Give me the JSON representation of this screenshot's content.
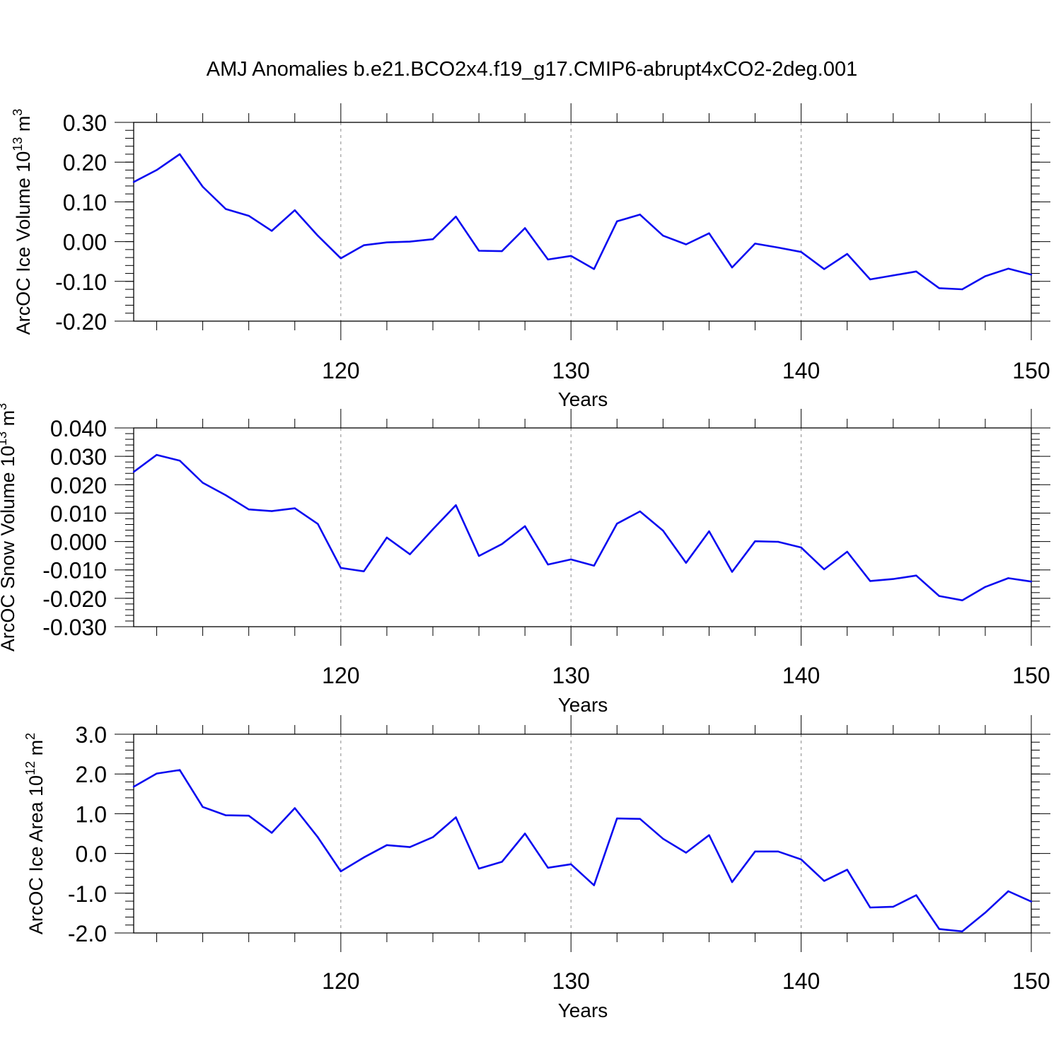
{
  "title": "AMJ Anomalies b.e21.BCO2x4.f19_g17.CMIP6-abrupt4xCO2-2deg.001",
  "line_color": "#0a0af0",
  "chart_data": [
    {
      "type": "line",
      "name": "ice-volume",
      "ylabel": "ArcOC Ice Volume 10",
      "ylabel_sup": "13",
      "ylabel_unit": " m",
      "ylabel_unit_sup": "3",
      "xlabel": "Years",
      "xlim": [
        111,
        150
      ],
      "ylim": [
        -0.2,
        0.3
      ],
      "xticks": [
        120,
        130,
        140,
        150
      ],
      "xtick_labels": [
        "120",
        "130",
        "140",
        "150"
      ],
      "yticks": [
        -0.2,
        -0.1,
        0.0,
        0.1,
        0.2,
        0.3
      ],
      "ytick_labels": [
        "-0.20",
        "-0.10",
        "0.00",
        "0.10",
        "0.20",
        "0.30"
      ],
      "y_minor_step": 0.02,
      "grid": "vertical dashed at major x ticks",
      "x": [
        111,
        112,
        113,
        114,
        115,
        116,
        117,
        118,
        119,
        120,
        121,
        122,
        123,
        124,
        125,
        126,
        127,
        128,
        129,
        130,
        131,
        132,
        133,
        134,
        135,
        136,
        137,
        138,
        139,
        140,
        141,
        142,
        143,
        144,
        145,
        146,
        147,
        148,
        149,
        150
      ],
      "values": [
        0.15,
        0.18,
        0.22,
        0.138,
        0.082,
        0.065,
        0.027,
        0.079,
        0.015,
        -0.042,
        -0.009,
        -0.002,
        0.0,
        0.006,
        0.063,
        -0.023,
        -0.024,
        0.034,
        -0.045,
        -0.036,
        -0.069,
        0.051,
        0.068,
        0.015,
        -0.007,
        0.021,
        -0.065,
        -0.005,
        -0.015,
        -0.026,
        -0.069,
        -0.031,
        -0.095,
        -0.085,
        -0.075,
        -0.117,
        -0.12,
        -0.087,
        -0.068,
        -0.083
      ]
    },
    {
      "type": "line",
      "name": "snow-volume",
      "ylabel": "ArcOC Snow Volume 10",
      "ylabel_sup": "13",
      "ylabel_unit": " m",
      "ylabel_unit_sup": "3",
      "xlabel": "Years",
      "xlim": [
        111,
        150
      ],
      "ylim": [
        -0.03,
        0.04
      ],
      "xticks": [
        120,
        130,
        140,
        150
      ],
      "xtick_labels": [
        "120",
        "130",
        "140",
        "150"
      ],
      "yticks": [
        -0.03,
        -0.02,
        -0.01,
        0.0,
        0.01,
        0.02,
        0.03,
        0.04
      ],
      "ytick_labels": [
        "-0.030",
        "-0.020",
        "-0.010",
        "0.000",
        "0.010",
        "0.020",
        "0.030",
        "0.040"
      ],
      "y_minor_step": 0.002,
      "grid": "vertical dashed at major x ticks",
      "x": [
        111,
        112,
        113,
        114,
        115,
        116,
        117,
        118,
        119,
        120,
        121,
        122,
        123,
        124,
        125,
        126,
        127,
        128,
        129,
        130,
        131,
        132,
        133,
        134,
        135,
        136,
        137,
        138,
        139,
        140,
        141,
        142,
        143,
        144,
        145,
        146,
        147,
        148,
        149,
        150
      ],
      "values": [
        0.0245,
        0.0305,
        0.0285,
        0.0207,
        0.0163,
        0.0113,
        0.0107,
        0.0117,
        0.0062,
        -0.0093,
        -0.0105,
        0.0014,
        -0.0045,
        0.0043,
        0.0128,
        -0.0051,
        -0.0009,
        0.0054,
        -0.0081,
        -0.0063,
        -0.0085,
        0.0063,
        0.0106,
        0.0038,
        -0.0075,
        0.0036,
        -0.0107,
        0.0001,
        -0.0001,
        -0.0021,
        -0.0098,
        -0.0036,
        -0.0139,
        -0.0132,
        -0.012,
        -0.0192,
        -0.0207,
        -0.016,
        -0.0129,
        -0.0141
      ]
    },
    {
      "type": "line",
      "name": "ice-area",
      "ylabel": "ArcOC Ice Area 10",
      "ylabel_sup": "12",
      "ylabel_unit": " m",
      "ylabel_unit_sup": "2",
      "xlabel": "Years",
      "xlim": [
        111,
        150
      ],
      "ylim": [
        -2.0,
        3.0
      ],
      "xticks": [
        120,
        130,
        140,
        150
      ],
      "xtick_labels": [
        "120",
        "130",
        "140",
        "150"
      ],
      "yticks": [
        -2.0,
        -1.0,
        0.0,
        1.0,
        2.0,
        3.0
      ],
      "ytick_labels": [
        "-2.0",
        "-1.0",
        "0.0",
        "1.0",
        "2.0",
        "3.0"
      ],
      "y_minor_step": 0.2,
      "grid": "vertical dashed at major x ticks",
      "x": [
        111,
        112,
        113,
        114,
        115,
        116,
        117,
        118,
        119,
        120,
        121,
        122,
        123,
        124,
        125,
        126,
        127,
        128,
        129,
        130,
        131,
        132,
        133,
        134,
        135,
        136,
        137,
        138,
        139,
        140,
        141,
        142,
        143,
        144,
        145,
        146,
        147,
        148,
        149,
        150
      ],
      "values": [
        1.68,
        2.01,
        2.1,
        1.17,
        0.96,
        0.95,
        0.52,
        1.14,
        0.41,
        -0.45,
        -0.1,
        0.21,
        0.16,
        0.41,
        0.91,
        -0.38,
        -0.21,
        0.5,
        -0.36,
        -0.27,
        -0.8,
        0.88,
        0.87,
        0.37,
        0.02,
        0.46,
        -0.72,
        0.05,
        0.05,
        -0.15,
        -0.69,
        -0.41,
        -1.36,
        -1.34,
        -1.05,
        -1.9,
        -1.96,
        -1.49,
        -0.95,
        -1.21
      ]
    }
  ]
}
